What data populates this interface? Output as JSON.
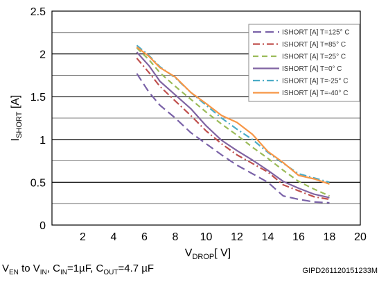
{
  "chart_data": {
    "type": "line",
    "xlim": [
      0,
      20
    ],
    "ylim": [
      0,
      2.5
    ],
    "x_ticks": [
      "2",
      "4",
      "6",
      "8",
      "10",
      "12",
      "14",
      "16",
      "18",
      "20"
    ],
    "y_ticks": [
      "0",
      "0.5",
      "1",
      "1.5",
      "2",
      "2.5"
    ],
    "grid_y_minor": [
      0.25,
      0.75,
      1.25,
      1.75,
      2.25
    ],
    "ylabel": {
      "main": "I",
      "sub": "SHORT",
      "tail": " [A]"
    },
    "xlabel": {
      "main": "V",
      "sub": "DROP",
      "tail": "[ V]"
    },
    "legend_position": "top-right",
    "series": [
      {
        "name": "ISHORT [A] T=125° C",
        "color": "#7a62a8",
        "dash": "long-dash",
        "x": [
          5.5,
          6.3,
          7,
          8,
          9,
          10,
          11,
          12,
          13,
          14,
          15,
          16,
          17,
          18
        ],
        "y": [
          1.77,
          1.55,
          1.4,
          1.25,
          1.08,
          0.95,
          0.82,
          0.7,
          0.6,
          0.5,
          0.34,
          0.3,
          0.27,
          0.26
        ]
      },
      {
        "name": "ISHORT [A] T=85° C",
        "color": "#c0504d",
        "dash": "dash-dot",
        "x": [
          5.5,
          6.3,
          7,
          8,
          9,
          10,
          11,
          12,
          13,
          14,
          15,
          16,
          17,
          18
        ],
        "y": [
          1.95,
          1.78,
          1.62,
          1.45,
          1.28,
          1.1,
          0.95,
          0.82,
          0.72,
          0.62,
          0.47,
          0.4,
          0.33,
          0.3
        ]
      },
      {
        "name": "ISHORT [A] T=25° C",
        "color": "#9bbb59",
        "dash": "dash",
        "x": [
          5.5,
          6.3,
          7,
          8,
          9,
          10,
          11,
          12,
          13,
          14,
          15,
          16,
          17,
          18
        ],
        "y": [
          2.07,
          1.93,
          1.78,
          1.62,
          1.47,
          1.32,
          1.18,
          1.05,
          0.91,
          0.78,
          0.64,
          0.51,
          0.42,
          0.34
        ]
      },
      {
        "name": "ISHORT [A] T=0° C",
        "color": "#8064a2",
        "dash": "solid",
        "x": [
          5.5,
          6.3,
          7,
          8,
          9,
          10,
          11,
          12,
          13,
          14,
          15,
          16,
          17,
          18
        ],
        "y": [
          2.02,
          1.86,
          1.68,
          1.52,
          1.36,
          1.16,
          0.99,
          0.87,
          0.76,
          0.64,
          0.51,
          0.43,
          0.36,
          0.32
        ]
      },
      {
        "name": "ISHORT [A] T=-25° C",
        "color": "#4bacc6",
        "dash": "dash-dot",
        "x": [
          5.5,
          6.3,
          7,
          8,
          9,
          10,
          11,
          12,
          13,
          14,
          15,
          16,
          17,
          18
        ],
        "y": [
          2.1,
          1.98,
          1.85,
          1.72,
          1.55,
          1.4,
          1.25,
          1.12,
          1.0,
          0.85,
          0.72,
          0.6,
          0.55,
          0.5
        ]
      },
      {
        "name": "ISHORT [A] T=-40° C",
        "color": "#f79646",
        "dash": "solid",
        "x": [
          5.5,
          6.3,
          7,
          8,
          9,
          10,
          11,
          12,
          13,
          14,
          15,
          16,
          17,
          18
        ],
        "y": [
          2.08,
          1.97,
          1.84,
          1.73,
          1.55,
          1.42,
          1.28,
          1.2,
          1.06,
          0.86,
          0.73,
          0.58,
          0.54,
          0.48
        ]
      }
    ]
  },
  "footer": {
    "conditions": [
      {
        "t": "V"
      },
      {
        "t": "EN",
        "sub": true
      },
      {
        "t": " to V"
      },
      {
        "t": "IN",
        "sub": true
      },
      {
        "t": ", C"
      },
      {
        "t": "IN",
        "sub": true
      },
      {
        "t": "=1µF, C"
      },
      {
        "t": "OUT",
        "sub": true
      },
      {
        "t": "=4.7 µF"
      }
    ],
    "code": "GIPD261120151233M"
  }
}
